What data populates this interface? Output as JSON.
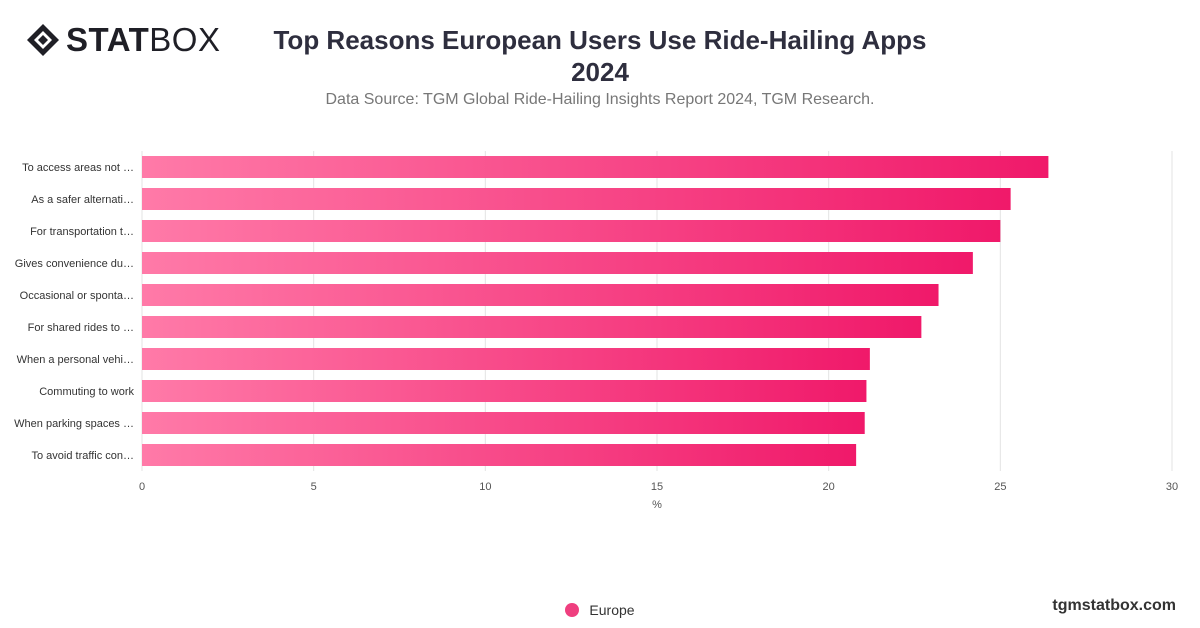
{
  "logo": {
    "bold": "STAT",
    "light": "BOX",
    "icon": "diamond-icon"
  },
  "header": {
    "title": "Top Reasons European Users Use Ride-Hailing Apps",
    "title_line2": "2024",
    "subtitle": "Data Source: TGM Global Ride-Hailing Insights Report 2024, TGM Research."
  },
  "brand": "tgmstatbox.com",
  "colors": {
    "bar_start": "#ff7aa8",
    "bar_end": "#f0196a",
    "legend": "#ef3f7f"
  },
  "chart_data": {
    "type": "bar",
    "orientation": "horizontal",
    "categories": [
      "To access areas not …",
      "As a safer alternati…",
      "For transportation t…",
      "Gives convenience du…",
      "Occasional or sponta…",
      "For shared rides to …",
      "When a personal vehi…",
      "Commuting to work",
      "When parking spaces …",
      "To avoid traffic con…"
    ],
    "series": [
      {
        "name": "Europe",
        "values": [
          26.4,
          25.3,
          25.0,
          24.2,
          23.2,
          22.7,
          21.2,
          21.1,
          21.05,
          20.8
        ]
      }
    ],
    "xlabel": "%",
    "xlim": [
      0,
      30
    ],
    "xticks": [
      0,
      5,
      10,
      15,
      20,
      25,
      30
    ],
    "grid": true,
    "legend_position": "bottom-center"
  }
}
